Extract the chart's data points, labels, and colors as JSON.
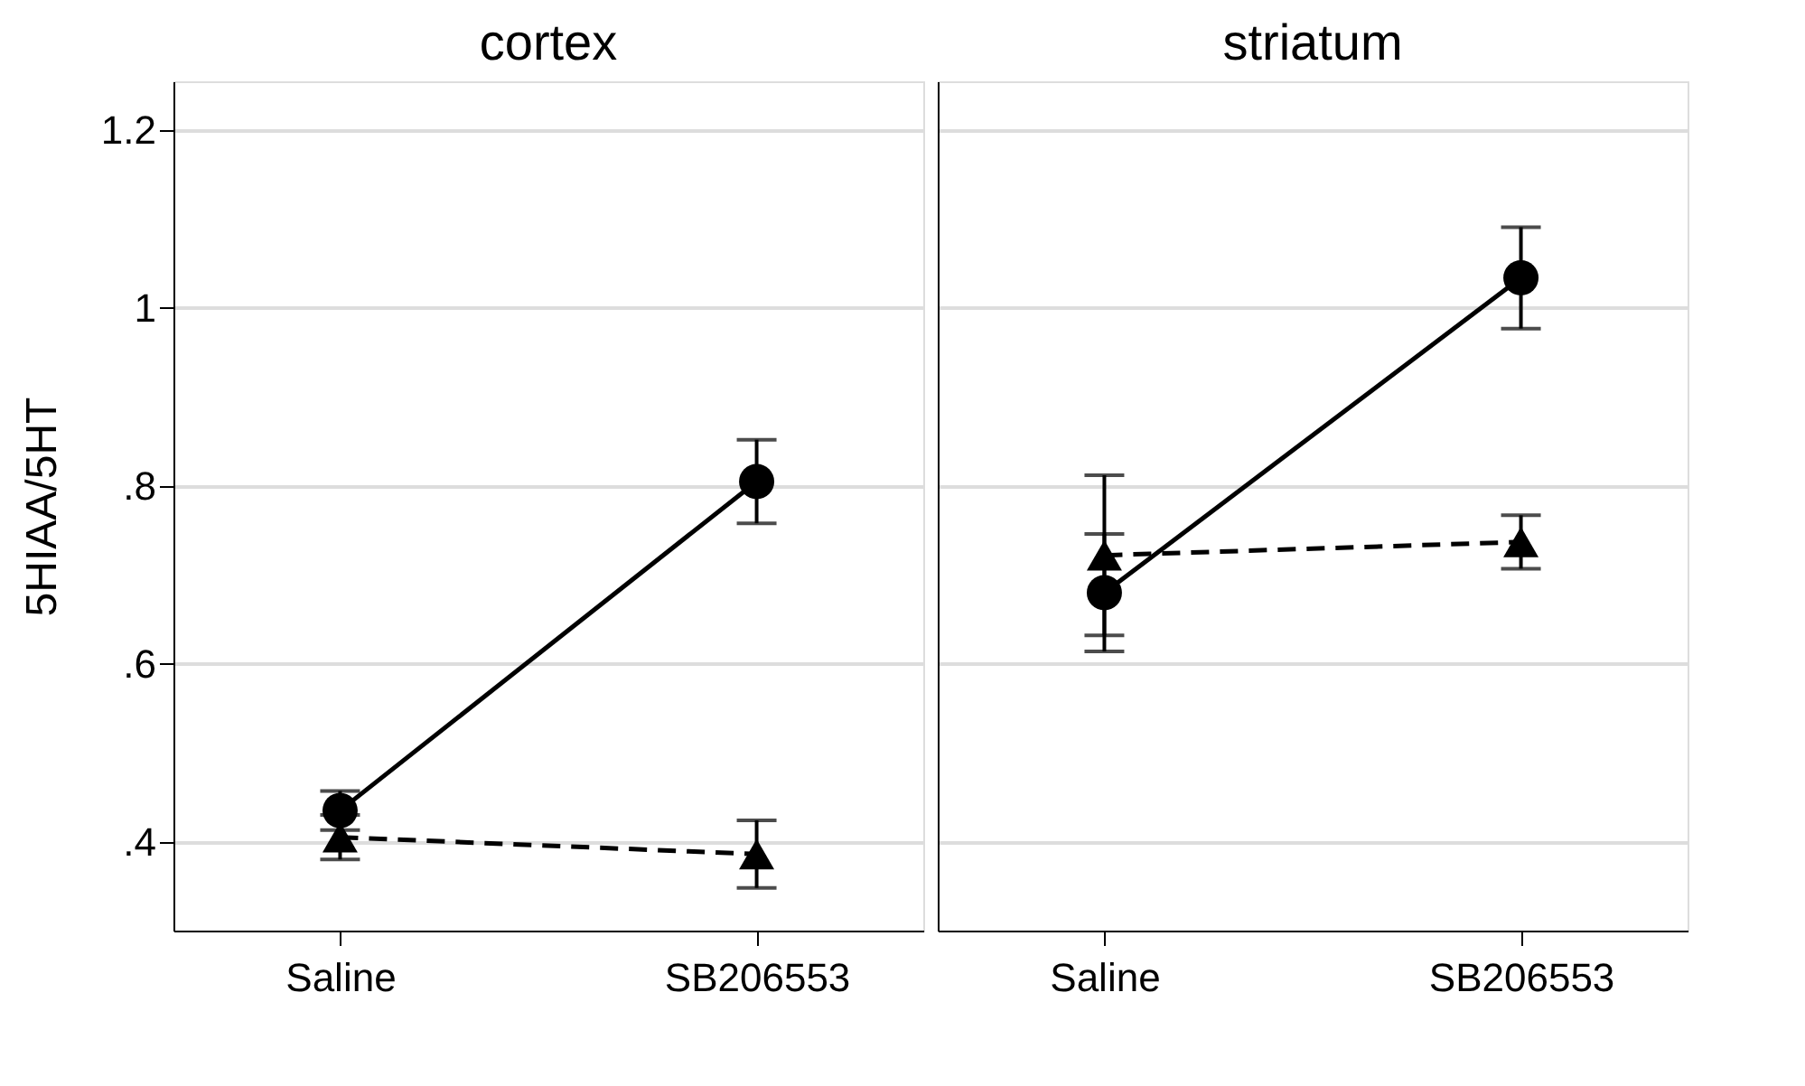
{
  "chart_data": [
    {
      "type": "line",
      "title": "cortex",
      "ylabel": "5HIAA/5HT",
      "categories": [
        "Saline",
        "SB206553"
      ],
      "ylim": [
        0.3,
        1.255
      ],
      "yticks": [
        {
          "value": 0.4,
          "label": ".4"
        },
        {
          "value": 0.6,
          "label": ".6"
        },
        {
          "value": 0.8,
          "label": ".8"
        },
        {
          "value": 1,
          "label": "1"
        },
        {
          "value": 1.2,
          "label": "1.2"
        }
      ],
      "grid": "y",
      "series": [
        {
          "color": "#000000",
          "marker": "circle",
          "line_style": "solid",
          "values": [
            0.435,
            0.805
          ],
          "errors": [
            0.022,
            0.047
          ]
        },
        {
          "color": "#000000",
          "marker": "triangle",
          "line_style": "dashed",
          "values": [
            0.405,
            0.386
          ],
          "errors": [
            0.025,
            0.038
          ]
        }
      ]
    },
    {
      "type": "line",
      "title": "striatum",
      "categories": [
        "Saline",
        "SB206553"
      ],
      "ylim": [
        0.3,
        1.255
      ],
      "yticks": [
        0.4,
        0.6,
        0.8,
        1,
        1.2
      ],
      "grid": "y",
      "tick_labels": "x",
      "series": [
        {
          "color": "#000000",
          "marker": "circle",
          "line_style": "solid",
          "values": [
            0.68,
            1.034
          ],
          "errors": [
            0.066,
            0.057
          ]
        },
        {
          "color": "#000000",
          "marker": "triangle",
          "line_style": "dashed",
          "values": [
            0.722,
            0.737
          ],
          "errors": [
            0.09,
            0.03
          ]
        }
      ]
    }
  ]
}
